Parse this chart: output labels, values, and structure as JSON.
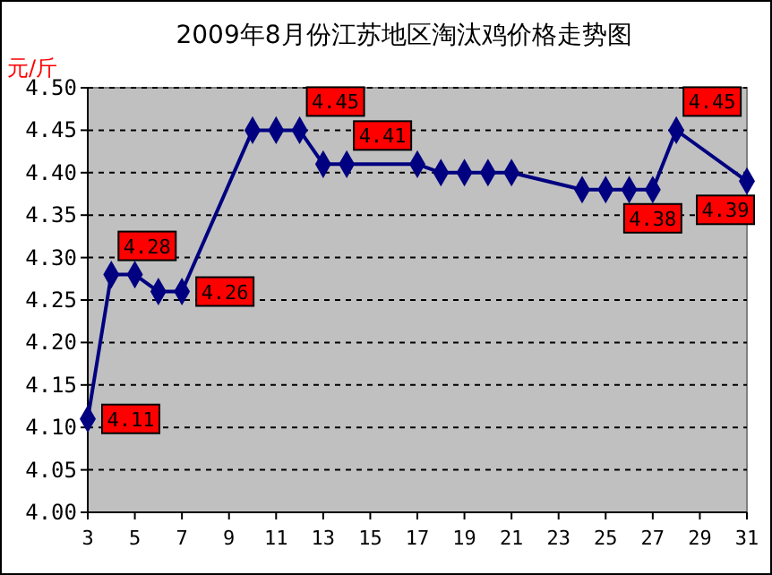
{
  "chart_data": {
    "type": "line",
    "title": "2009年8月份江苏地区淘汰鸡价格走势图",
    "ylabel": "元/斤",
    "x": [
      3,
      4,
      5,
      6,
      7,
      10,
      11,
      12,
      13,
      14,
      17,
      18,
      19,
      20,
      21,
      24,
      25,
      26,
      27,
      28,
      31
    ],
    "series": [
      {
        "color": "#000080",
        "values": [
          4.11,
          4.28,
          4.28,
          4.26,
          4.26,
          4.45,
          4.45,
          4.45,
          4.41,
          4.41,
          4.41,
          4.4,
          4.4,
          4.4,
          4.4,
          4.38,
          4.38,
          4.38,
          4.38,
          4.45,
          4.39
        ],
        "value_labels": [
          "4.11",
          "4.28",
          null,
          null,
          "4.26",
          null,
          null,
          "4.45",
          null,
          "4.41",
          null,
          null,
          null,
          null,
          null,
          null,
          null,
          null,
          "4.38",
          "4.45",
          "4.39"
        ]
      }
    ],
    "xlim": [
      3,
      31
    ],
    "xticks": [
      3,
      5,
      7,
      9,
      11,
      13,
      15,
      17,
      19,
      21,
      23,
      25,
      27,
      29,
      31
    ],
    "ylim": [
      4.0,
      4.5
    ],
    "yticks": [
      {
        "value": 4.0,
        "label": "4.00"
      },
      {
        "value": 4.05,
        "label": "4.05"
      },
      {
        "value": 4.1,
        "label": "4.10"
      },
      {
        "value": 4.15,
        "label": "4.15"
      },
      {
        "value": 4.2,
        "label": "4.20"
      },
      {
        "value": 4.25,
        "label": "4.25"
      },
      {
        "value": 4.3,
        "label": "4.30"
      },
      {
        "value": 4.35,
        "label": "4.35"
      },
      {
        "value": 4.4,
        "label": "4.40"
      },
      {
        "value": 4.45,
        "label": "4.45"
      },
      {
        "value": 4.5,
        "label": "4.50"
      }
    ],
    "grid": "y",
    "marker": "diamond",
    "line_style": "solid"
  }
}
